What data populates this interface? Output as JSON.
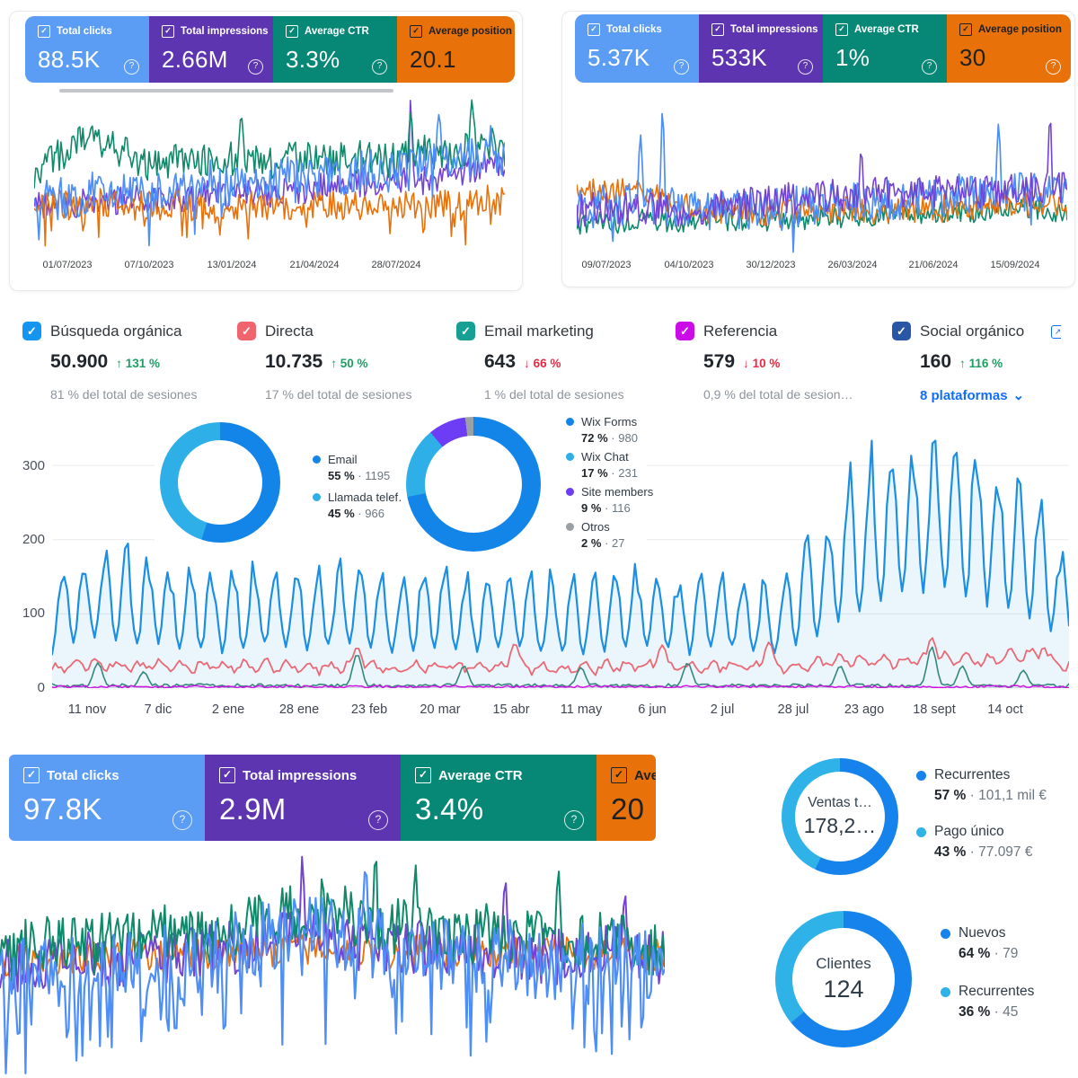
{
  "icons": {
    "check": "✓",
    "help": "?",
    "sep": "·",
    "chevron_down": "⌄",
    "external_link": "↗"
  },
  "colors": {
    "link": "#116dff",
    "up": "#1e9e63",
    "down": "#e22b45"
  },
  "gsc_panel_1": {
    "cards": [
      {
        "label": "Total clicks",
        "value": "88.5K",
        "bg": "#5b9cf5",
        "fg": "#ffffff"
      },
      {
        "label": "Total impressions",
        "value": "2.66M",
        "bg": "#5e35b1",
        "fg": "#ffffff"
      },
      {
        "label": "Average CTR",
        "value": "3.3%",
        "bg": "#078876",
        "fg": "#ffffff"
      },
      {
        "label": "Average position",
        "value": "20.1",
        "bg": "#e8710a",
        "fg": "#212121"
      }
    ],
    "x_ticks": [
      "01/07/2023",
      "07/10/2023",
      "13/01/2024",
      "21/04/2024",
      "28/07/2024"
    ]
  },
  "gsc_panel_2": {
    "cards": [
      {
        "label": "Total clicks",
        "value": "5.37K",
        "bg": "#5b9cf5",
        "fg": "#ffffff"
      },
      {
        "label": "Total impressions",
        "value": "533K",
        "bg": "#5e35b1",
        "fg": "#ffffff"
      },
      {
        "label": "Average CTR",
        "value": "1%",
        "bg": "#078876",
        "fg": "#ffffff"
      },
      {
        "label": "Average position",
        "value": "30",
        "bg": "#e8710a",
        "fg": "#212121"
      }
    ],
    "x_ticks": [
      "09/07/2023",
      "04/10/2023",
      "30/12/2023",
      "26/03/2024",
      "21/06/2024",
      "15/09/2024"
    ]
  },
  "gsc_panel_3": {
    "cards": [
      {
        "label": "Total clicks",
        "value": "97.8K",
        "bg": "#5b9cf5",
        "fg": "#ffffff"
      },
      {
        "label": "Total impressions",
        "value": "2.9M",
        "bg": "#5e35b1",
        "fg": "#ffffff"
      },
      {
        "label": "Average CTR",
        "value": "3.4%",
        "bg": "#078876",
        "fg": "#ffffff"
      },
      {
        "label": "Ave",
        "value": "20",
        "bg": "#e8710a",
        "fg": "#212121"
      }
    ]
  },
  "traffic": {
    "channels": [
      {
        "label": "Búsqueda orgánica",
        "value": "50.900",
        "arrow": "↑",
        "delta": "131 %",
        "delta_color": "#1e9e63",
        "subtext": "81 % del total de sesiones",
        "checkbox": "#1496f0"
      },
      {
        "label": "Directa",
        "value": "10.735",
        "arrow": "↑",
        "delta": "50 %",
        "delta_color": "#1e9e63",
        "subtext": "17 % del total de sesiones",
        "checkbox": "#f0646d"
      },
      {
        "label": "Email marketing",
        "value": "643",
        "arrow": "↓",
        "delta": "66 %",
        "delta_color": "#e22b45",
        "subtext": "1 % del total de sesiones",
        "checkbox": "#16a095"
      },
      {
        "label": "Referencia",
        "value": "579",
        "arrow": "↓",
        "delta": "10 %",
        "delta_color": "#e22b45",
        "subtext": "0,9 % del total de sesion…",
        "checkbox": "#cb0be8"
      },
      {
        "label": "Social orgánico",
        "value": "160",
        "arrow": "↑",
        "delta": "116 %",
        "delta_color": "#1e9e63",
        "link_label": "8 plataformas",
        "checkbox": "#2a57a5"
      }
    ],
    "y_ticks": [
      "300",
      "200",
      "100",
      "0"
    ],
    "x_ticks": [
      "11 nov",
      "7 dic",
      "2 ene",
      "28 ene",
      "23 feb",
      "20 mar",
      "15 abr",
      "11 may",
      "6 jun",
      "2 jul",
      "28 jul",
      "23 ago",
      "18 sept",
      "14 oct"
    ]
  },
  "chart_data": [
    {
      "type": "line",
      "name": "search-console-performance-1",
      "seed": 11,
      "n": 300,
      "x_ticks": [
        "01/07/2023",
        "07/10/2023",
        "13/01/2024",
        "21/04/2024",
        "28/07/2024"
      ],
      "series": [
        {
          "name": "Total impressions",
          "color": "#7344d4",
          "width": 1.6,
          "noise": 9,
          "anchors": [
            30,
            33,
            31,
            34,
            32,
            36,
            34,
            37,
            35,
            38,
            37,
            40,
            38,
            42,
            40,
            44,
            42,
            46,
            44,
            48,
            46,
            50,
            52,
            56,
            55
          ],
          "spikes": [
            {
              "x": 0.8,
              "v": 97,
              "w": 0.004
            }
          ]
        },
        {
          "name": "Average position",
          "color": "#e8710a",
          "width": 1.6,
          "noise": 9,
          "drop_chance": 0.12,
          "drop_depth": 20,
          "anchors": [
            30,
            32,
            30,
            33,
            31,
            33,
            30,
            32,
            29,
            31,
            30,
            32,
            29,
            31,
            30,
            32,
            30,
            31,
            29,
            31,
            30,
            32,
            33,
            35,
            33
          ]
        },
        {
          "name": "Average CTR",
          "color": "#0e8a6b",
          "width": 1.6,
          "noise": 11,
          "anchors": [
            52,
            58,
            68,
            72,
            66,
            60,
            56,
            58,
            60,
            57,
            60,
            62,
            58,
            60,
            63,
            60,
            62,
            60,
            58,
            62,
            65,
            60,
            66,
            70,
            64
          ],
          "spikes": [
            {
              "x": 0.44,
              "v": 86,
              "w": 0.008
            },
            {
              "x": 0.8,
              "v": 88,
              "w": 0.007
            },
            {
              "x": 0.93,
              "v": 96,
              "w": 0.007
            }
          ]
        },
        {
          "name": "Total clicks",
          "color": "#4d8ef7",
          "width": 1.7,
          "noise": 13,
          "drop_chance": 0.05,
          "drop_depth": 25,
          "anchors": [
            34,
            38,
            35,
            40,
            37,
            42,
            38,
            44,
            40,
            46,
            42,
            48,
            44,
            50,
            46,
            52,
            48,
            54,
            50,
            56,
            58,
            62,
            60,
            63,
            57
          ],
          "spikes": [
            {
              "x": 0.86,
              "v": 87,
              "w": 0.008
            },
            {
              "x": 0.97,
              "v": 80,
              "w": 0.006
            }
          ]
        }
      ]
    },
    {
      "type": "line",
      "name": "search-console-performance-2",
      "seed": 23,
      "n": 300,
      "x_ticks": [
        "09/07/2023",
        "04/10/2023",
        "30/12/2023",
        "26/03/2024",
        "21/06/2024",
        "15/09/2024"
      ],
      "series": [
        {
          "name": "Average CTR",
          "color": "#0e8a6b",
          "width": 1.6,
          "noise": 7,
          "anchors": [
            20,
            22,
            21,
            23,
            22,
            20,
            21,
            22,
            23,
            22,
            24,
            23,
            25,
            24,
            26,
            25,
            27,
            26,
            28,
            27,
            29,
            28,
            30,
            29,
            28
          ]
        },
        {
          "name": "Average position",
          "color": "#e8710a",
          "width": 1.6,
          "noise": 9,
          "anchors": [
            38,
            42,
            40,
            44,
            38,
            34,
            30,
            28,
            27,
            28,
            27,
            29,
            28,
            30,
            28,
            30,
            29,
            31,
            30,
            32,
            31,
            33,
            32,
            34,
            33
          ]
        },
        {
          "name": "Total clicks",
          "color": "#4d8ef7",
          "width": 1.7,
          "noise": 13,
          "drop_chance": 0.05,
          "drop_depth": 20,
          "anchors": [
            30,
            34,
            30,
            36,
            32,
            30,
            28,
            30,
            29,
            31,
            30,
            33,
            31,
            35,
            33,
            37,
            35,
            39,
            37,
            41,
            39,
            43,
            41,
            45,
            40
          ],
          "spikes": [
            {
              "x": 0.13,
              "v": 78,
              "w": 0.005
            },
            {
              "x": 0.175,
              "v": 95,
              "w": 0.004
            },
            {
              "x": 0.86,
              "v": 85,
              "w": 0.005
            }
          ]
        },
        {
          "name": "Total impressions",
          "color": "#7344d4",
          "width": 1.6,
          "noise": 11,
          "anchors": [
            28,
            30,
            29,
            31,
            30,
            29,
            30,
            32,
            33,
            35,
            36,
            38,
            37,
            39,
            38,
            40,
            39,
            41,
            40,
            42,
            41,
            43,
            42,
            44,
            42
          ],
          "spikes": [
            {
              "x": 0.58,
              "v": 68,
              "w": 0.005
            },
            {
              "x": 0.965,
              "v": 92,
              "w": 0.004
            }
          ]
        }
      ]
    },
    {
      "type": "area",
      "name": "sessions-by-channel-daily",
      "ylim": [
        0,
        368
      ],
      "gridlines": [
        100,
        200,
        300
      ],
      "x_ticks": [
        "11 nov",
        "7 dic",
        "2 ene",
        "28 ene",
        "23 feb",
        "20 mar",
        "15 abr",
        "11 may",
        "6 jun",
        "2 jul",
        "28 jul",
        "23 ago",
        "18 sept",
        "14 oct"
      ],
      "series": [
        {
          "name": "Búsqueda orgánica",
          "model": "weekly",
          "color": "#1a8fe3",
          "fill": "#1a8fe3",
          "fill_opacity": 0.09,
          "width": 2.2,
          "peaks": [
            150,
            190,
            170,
            158,
            150,
            168,
            152,
            164,
            142,
            158,
            148,
            162,
            140,
            152,
            158,
            142,
            152,
            132,
            200,
            290,
            325,
            340,
            310,
            285,
            155
          ],
          "troughs": [
            48,
            68,
            58,
            54,
            50,
            58,
            54,
            58,
            50,
            54,
            50,
            58,
            46,
            54,
            54,
            50,
            54,
            44,
            70,
            105,
            125,
            135,
            115,
            95,
            68
          ]
        },
        {
          "name": "Directa",
          "model": "wave",
          "color": "#e96a76",
          "width": 1.8,
          "wave_amp": 8,
          "noise": 5,
          "anchors": [
            26,
            34,
            30,
            28,
            30,
            31,
            28,
            30,
            26,
            29,
            28,
            31,
            26,
            29,
            30,
            28,
            30,
            25,
            33,
            38,
            36,
            42,
            38,
            46,
            30
          ],
          "spikes": [
            {
              "x": 0.3,
              "v": 55,
              "w": 0.006
            },
            {
              "x": 0.455,
              "v": 60,
              "w": 0.006
            },
            {
              "x": 0.6,
              "v": 58,
              "w": 0.006
            },
            {
              "x": 0.705,
              "v": 62,
              "w": 0.006
            },
            {
              "x": 0.865,
              "v": 68,
              "w": 0.006
            },
            {
              "x": 0.975,
              "v": 55,
              "w": 0.006
            }
          ]
        },
        {
          "name": "Email marketing",
          "model": "spikes",
          "color": "#35877c",
          "width": 1.6,
          "base": 3.5,
          "noise": 2.5,
          "spikes": [
            {
              "x": 0.045,
              "v": 34
            },
            {
              "x": 0.09,
              "v": 22
            },
            {
              "x": 0.3,
              "v": 46
            },
            {
              "x": 0.405,
              "v": 30
            },
            {
              "x": 0.52,
              "v": 28
            },
            {
              "x": 0.625,
              "v": 34
            },
            {
              "x": 0.775,
              "v": 30
            },
            {
              "x": 0.865,
              "v": 56
            },
            {
              "x": 0.895,
              "v": 30
            },
            {
              "x": 0.955,
              "v": 24
            }
          ]
        },
        {
          "name": "Referencia",
          "model": "flat",
          "color": "#cf12e4",
          "width": 1.5,
          "base": 1.8,
          "noise": 1.6
        }
      ]
    },
    {
      "type": "line",
      "name": "search-console-performance-3",
      "seed": 37,
      "n": 340,
      "series": [
        {
          "name": "Average position",
          "color": "#e8710a",
          "width": 1.8,
          "noise": 7,
          "anchors": [
            50,
            52,
            50,
            53,
            51,
            54,
            52,
            54,
            53,
            55,
            54,
            56,
            55,
            56,
            54,
            55,
            54,
            55,
            53,
            54,
            55,
            54,
            53,
            54,
            53
          ]
        },
        {
          "name": "Total impressions",
          "color": "#7344d4",
          "width": 2,
          "noise": 12,
          "anchors": [
            48,
            50,
            49,
            52,
            50,
            53,
            51,
            54,
            55,
            57,
            59,
            62,
            60,
            58,
            57,
            56,
            55,
            54,
            55,
            53,
            52,
            53,
            54,
            55,
            52
          ],
          "spikes": [
            {
              "x": 0.455,
              "v": 97,
              "w": 0.004
            },
            {
              "x": 0.76,
              "v": 86,
              "w": 0.005
            },
            {
              "x": 0.94,
              "v": 80,
              "w": 0.005
            }
          ]
        },
        {
          "name": "Average CTR",
          "color": "#0e8a6b",
          "width": 2,
          "noise": 13,
          "anchors": [
            52,
            56,
            58,
            56,
            60,
            58,
            62,
            60,
            64,
            66,
            70,
            74,
            72,
            68,
            66,
            64,
            63,
            62,
            64,
            60,
            58,
            60,
            62,
            58,
            56
          ],
          "spikes": [
            {
              "x": 0.565,
              "v": 99,
              "w": 0.004
            },
            {
              "x": 0.625,
              "v": 92,
              "w": 0.005
            },
            {
              "x": 0.84,
              "v": 90,
              "w": 0.005
            }
          ]
        },
        {
          "name": "Total clicks",
          "color": "#4d8ef7",
          "width": 2.2,
          "noise": 16,
          "drop_chance": 0.18,
          "drop_depth": 38,
          "anchors": [
            46,
            48,
            46,
            50,
            48,
            52,
            50,
            54,
            55,
            58,
            62,
            66,
            64,
            60,
            58,
            56,
            54,
            52,
            53,
            51,
            49,
            51,
            53,
            50,
            48
          ],
          "spikes": [
            {
              "x": 0.55,
              "v": 92,
              "w": 0.005
            }
          ]
        }
      ]
    },
    {
      "type": "pie",
      "name": "contacts-split-1",
      "segments": [
        {
          "label": "Email",
          "pct": 55,
          "pct_label": "55 %",
          "value": "1195",
          "color": "#1385e8"
        },
        {
          "label": "Llamada telef…",
          "pct": 45,
          "pct_label": "45 %",
          "value": "966",
          "color": "#2eafe8"
        }
      ]
    },
    {
      "type": "pie",
      "name": "contacts-split-2",
      "segments": [
        {
          "label": "Wix Forms",
          "pct": 72,
          "pct_label": "72 %",
          "value": "980",
          "color": "#1385e8"
        },
        {
          "label": "Wix Chat",
          "pct": 17,
          "pct_label": "17 %",
          "value": "231",
          "color": "#2eafe8"
        },
        {
          "label": "Site members",
          "pct": 9,
          "pct_label": "9 %",
          "value": "116",
          "color": "#6c3df4"
        },
        {
          "label": "Otros",
          "pct": 2,
          "pct_label": "2 %",
          "value": "27",
          "color": "#9aa0a6"
        }
      ]
    },
    {
      "type": "pie",
      "name": "ventas-totales",
      "center_label": "Ventas t…",
      "center_value": "178,2…",
      "segments": [
        {
          "label": "Recurrentes",
          "pct": 57,
          "pct_label": "57 %",
          "value": "101,1 mil €",
          "color": "#1683ec"
        },
        {
          "label": "Pago único",
          "pct": 43,
          "pct_label": "43 %",
          "value": "77.097 €",
          "color": "#2fb2e8"
        }
      ]
    },
    {
      "type": "pie",
      "name": "clientes",
      "center_label": "Clientes",
      "center_value": "124",
      "segments": [
        {
          "label": "Nuevos",
          "pct": 64,
          "pct_label": "64 %",
          "value": "79",
          "color": "#1683ec"
        },
        {
          "label": "Recurrentes",
          "pct": 36,
          "pct_label": "36 %",
          "value": "45",
          "color": "#2fb2e8"
        }
      ]
    }
  ]
}
